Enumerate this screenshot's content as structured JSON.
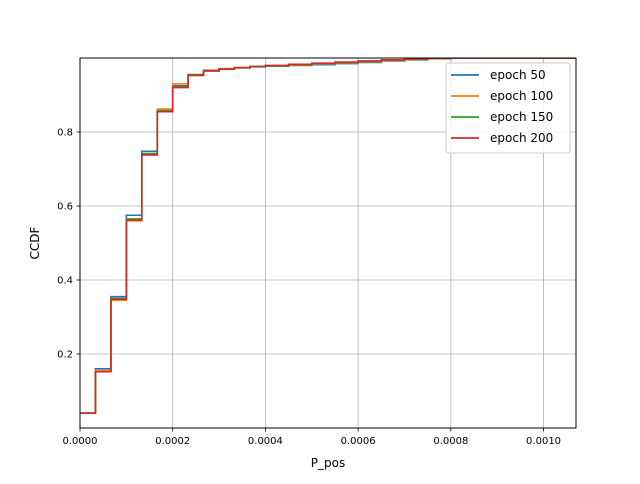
{
  "chart_data": {
    "type": "line",
    "xlabel": "P_pos",
    "ylabel": "CCDF",
    "xlim": [
      0,
      0.00107
    ],
    "ylim": [
      0.0,
      1.0
    ],
    "grid": true,
    "legend_position": "top-right",
    "x_ticks": [
      {
        "value": 0.0,
        "label": "0.0000"
      },
      {
        "value": 0.0002,
        "label": "0.0002"
      },
      {
        "value": 0.0004,
        "label": "0.0004"
      },
      {
        "value": 0.0006,
        "label": "0.0006"
      },
      {
        "value": 0.0008,
        "label": "0.0008"
      },
      {
        "value": 0.001,
        "label": "0.0010"
      }
    ],
    "y_ticks": [
      {
        "value": 0.2,
        "label": "0.2"
      },
      {
        "value": 0.4,
        "label": "0.4"
      },
      {
        "value": 0.6,
        "label": "0.6"
      },
      {
        "value": 0.8,
        "label": "0.8"
      }
    ],
    "series": [
      {
        "name": "epoch 50",
        "color": "#1f77b4",
        "x": [
          0.0,
          3.33e-05,
          6.67e-05,
          0.0001,
          0.0001333,
          0.0001667,
          0.0002,
          0.0002333,
          0.0002667,
          0.0003,
          0.0003333,
          0.0003667,
          0.0004,
          0.00045,
          0.0005,
          0.00055,
          0.0006,
          0.00065,
          0.0007,
          0.00075,
          0.0008,
          0.00107
        ],
        "y": [
          0.04,
          0.16,
          0.355,
          0.575,
          0.748,
          0.855,
          0.925,
          0.955,
          0.965,
          0.97,
          0.973,
          0.976,
          0.978,
          0.98,
          0.982,
          0.985,
          0.988,
          0.992,
          0.995,
          0.998,
          1.0,
          1.0
        ]
      },
      {
        "name": "epoch 100",
        "color": "#ff7f0e",
        "x": [
          0.0,
          3.33e-05,
          6.67e-05,
          0.0001,
          0.0001333,
          0.0001667,
          0.0002,
          0.0002333,
          0.0002667,
          0.0003,
          0.0003333,
          0.0003667,
          0.0004,
          0.00045,
          0.0005,
          0.00055,
          0.0006,
          0.00065,
          0.0007,
          0.00075,
          0.0008,
          0.00107
        ],
        "y": [
          0.04,
          0.155,
          0.345,
          0.56,
          0.74,
          0.862,
          0.93,
          0.955,
          0.967,
          0.971,
          0.974,
          0.977,
          0.979,
          0.981,
          0.984,
          0.987,
          0.99,
          0.993,
          0.996,
          0.998,
          1.0,
          1.0
        ]
      },
      {
        "name": "epoch 150",
        "color": "#2ca02c",
        "x": [
          0.0,
          3.33e-05,
          6.67e-05,
          0.0001,
          0.0001333,
          0.0001667,
          0.0002,
          0.0002333,
          0.0002667,
          0.0003,
          0.0003333,
          0.0003667,
          0.0004,
          0.00045,
          0.0005,
          0.00055,
          0.0006,
          0.00065,
          0.0007,
          0.00075,
          0.0008,
          0.00107
        ],
        "y": [
          0.04,
          0.152,
          0.35,
          0.565,
          0.742,
          0.858,
          0.922,
          0.955,
          0.966,
          0.97,
          0.974,
          0.977,
          0.979,
          0.982,
          0.985,
          0.988,
          0.991,
          0.994,
          0.996,
          0.998,
          1.0,
          1.0
        ]
      },
      {
        "name": "epoch 200",
        "color": "#d62728",
        "x": [
          0.0,
          3.33e-05,
          6.67e-05,
          0.0001,
          0.0001333,
          0.0001667,
          0.0002,
          0.0002333,
          0.0002667,
          0.0003,
          0.0003333,
          0.0003667,
          0.0004,
          0.00045,
          0.0005,
          0.00055,
          0.0006,
          0.00065,
          0.0007,
          0.00075,
          0.0008,
          0.00107
        ],
        "y": [
          0.04,
          0.152,
          0.348,
          0.562,
          0.738,
          0.855,
          0.92,
          0.953,
          0.965,
          0.97,
          0.974,
          0.977,
          0.98,
          0.983,
          0.986,
          0.989,
          0.992,
          0.995,
          0.997,
          0.999,
          1.0,
          1.0
        ]
      }
    ]
  }
}
